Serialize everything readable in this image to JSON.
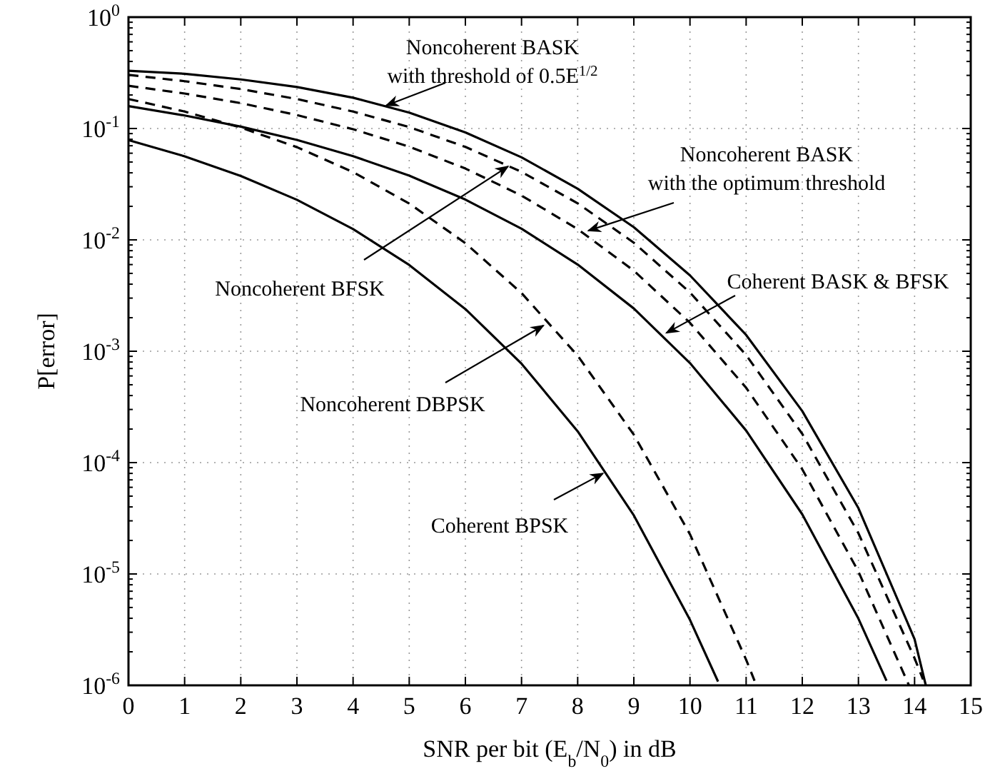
{
  "chart_data": {
    "type": "line",
    "xlabel": "SNR per bit (E$_{b}$/N$_{0}$) in dB",
    "ylabel": "P[error]",
    "log": "y",
    "grid": true,
    "marker": "none",
    "xlim": [
      0,
      15
    ],
    "xticks": [
      0,
      1,
      2,
      3,
      4,
      5,
      6,
      7,
      8,
      9,
      10,
      11,
      12,
      13,
      14,
      15
    ],
    "ylim": [
      1e-06,
      1
    ],
    "yticks": [
      {
        "value": 1e-06,
        "label": "10$^{-6}$"
      },
      {
        "value": 2e-06,
        "label": null
      },
      {
        "value": 3e-06,
        "label": null
      },
      {
        "value": 4e-06,
        "label": null
      },
      {
        "value": 5e-06,
        "label": null
      },
      {
        "value": 6e-06,
        "label": null
      },
      {
        "value": 7e-06,
        "label": null
      },
      {
        "value": 8e-06,
        "label": null
      },
      {
        "value": 9e-06,
        "label": null
      },
      {
        "value": 1e-05,
        "label": "10$^{-5}$"
      },
      {
        "value": 2e-05,
        "label": null
      },
      {
        "value": 3e-05,
        "label": null
      },
      {
        "value": 4e-05,
        "label": null
      },
      {
        "value": 5e-05,
        "label": null
      },
      {
        "value": 6e-05,
        "label": null
      },
      {
        "value": 7e-05,
        "label": null
      },
      {
        "value": 8e-05,
        "label": null
      },
      {
        "value": 9e-05,
        "label": null
      },
      {
        "value": 0.0001,
        "label": "10$^{-4}$"
      },
      {
        "value": 0.0002,
        "label": null
      },
      {
        "value": 0.0003,
        "label": null
      },
      {
        "value": 0.0004,
        "label": null
      },
      {
        "value": 0.0005,
        "label": null
      },
      {
        "value": 0.0006,
        "label": null
      },
      {
        "value": 0.0007,
        "label": null
      },
      {
        "value": 0.0008,
        "label": null
      },
      {
        "value": 0.0009,
        "label": null
      },
      {
        "value": 0.001,
        "label": "10$^{-3}$"
      },
      {
        "value": 0.002,
        "label": null
      },
      {
        "value": 0.003,
        "label": null
      },
      {
        "value": 0.004,
        "label": null
      },
      {
        "value": 0.005,
        "label": null
      },
      {
        "value": 0.006,
        "label": null
      },
      {
        "value": 0.007,
        "label": null
      },
      {
        "value": 0.008,
        "label": null
      },
      {
        "value": 0.009,
        "label": null
      },
      {
        "value": 0.01,
        "label": "10$^{-2}$"
      },
      {
        "value": 0.02,
        "label": null
      },
      {
        "value": 0.03,
        "label": null
      },
      {
        "value": 0.04,
        "label": null
      },
      {
        "value": 0.05,
        "label": null
      },
      {
        "value": 0.06,
        "label": null
      },
      {
        "value": 0.07,
        "label": null
      },
      {
        "value": 0.08,
        "label": null
      },
      {
        "value": 0.09,
        "label": null
      },
      {
        "value": 0.1,
        "label": "10$^{-1}$"
      },
      {
        "value": 0.2,
        "label": null
      },
      {
        "value": 0.3,
        "label": null
      },
      {
        "value": 0.4,
        "label": null
      },
      {
        "value": 0.5,
        "label": null
      },
      {
        "value": 0.6,
        "label": null
      },
      {
        "value": 0.7,
        "label": null
      },
      {
        "value": 0.8,
        "label": null
      },
      {
        "value": 0.9,
        "label": null
      },
      {
        "value": 1,
        "label": "10$^{0}$"
      }
    ],
    "series": [
      {
        "color": "#000000",
        "line_style": "solid",
        "x": [
          0,
          1,
          2,
          3,
          4,
          5,
          6,
          7,
          8,
          9,
          10,
          11,
          12,
          13,
          14,
          14.2
        ],
        "values": [
          0.33,
          0.31,
          0.276,
          0.236,
          0.189,
          0.139,
          0.0922,
          0.0551,
          0.0288,
          0.013,
          0.0048,
          0.0014,
          0.00029,
          3.9e-05,
          2.6e-06,
          1e-06
        ]
      },
      {
        "color": "#000000",
        "line_style": "dashed",
        "x": [
          0,
          1,
          2,
          3,
          4,
          5,
          6,
          7,
          8,
          9,
          10,
          11,
          12,
          13,
          14,
          14.15
        ],
        "values": [
          0.303,
          0.266,
          0.226,
          0.184,
          0.142,
          0.103,
          0.0683,
          0.0408,
          0.0213,
          0.00943,
          0.00337,
          0.000924,
          0.000181,
          2.32e-05,
          1.75e-06,
          1.13e-06
        ]
      },
      {
        "color": "#000000",
        "line_style": "dashed",
        "x": [
          0,
          1,
          2,
          3,
          4,
          5,
          6,
          7,
          8,
          9,
          10,
          11,
          12,
          13,
          13.9
        ],
        "values": [
          0.242,
          0.206,
          0.169,
          0.132,
          0.0985,
          0.0687,
          0.0437,
          0.025,
          0.0125,
          0.00529,
          0.0018,
          0.00047,
          8.7e-05,
          1.05e-05,
          1e-06
        ]
      },
      {
        "color": "#000000",
        "line_style": "solid",
        "x": [
          0,
          1,
          2,
          3,
          4,
          5,
          6,
          7,
          8,
          9,
          10,
          11,
          12,
          13,
          13.5
        ],
        "values": [
          0.159,
          0.131,
          0.104,
          0.0789,
          0.0565,
          0.0377,
          0.023,
          0.0126,
          0.006,
          0.00242,
          0.000783,
          0.000194,
          3.43e-05,
          3.97e-06,
          1.1e-06
        ]
      },
      {
        "color": "#000000",
        "line_style": "dashed",
        "x": [
          0,
          1,
          2,
          3,
          4,
          5,
          6,
          7,
          8,
          9,
          10,
          11,
          11.15
        ],
        "values": [
          0.184,
          0.142,
          0.102,
          0.068,
          0.0406,
          0.0212,
          0.00934,
          0.00333,
          0.000912,
          0.000178,
          2.27e-05,
          1.7e-06,
          1.1e-06
        ]
      },
      {
        "color": "#000000",
        "line_style": "solid",
        "x": [
          0,
          1,
          2,
          3,
          4,
          5,
          6,
          7,
          8,
          9,
          10,
          10.5
        ],
        "values": [
          0.0786,
          0.0563,
          0.0375,
          0.0229,
          0.0125,
          0.00595,
          0.00239,
          0.000773,
          0.000191,
          3.36e-05,
          3.87e-06,
          1.08e-06
        ]
      }
    ],
    "annotations": [
      {
        "text": "Noncoherent BASK\nwith threshold of 0.5E$^{1/2}$",
        "x": 4.59,
        "y": 0.161
      },
      {
        "text": "Noncoherent BASK\nwith the optimum threshold",
        "x": 8.19,
        "y": 0.0121
      },
      {
        "text": "Noncoherent BFSK",
        "x": 6.76,
        "y": 0.0457
      },
      {
        "text": "Coherent BASK & BFSK",
        "x": 9.58,
        "y": 0.00146
      },
      {
        "text": "Noncoherent DBPSK",
        "x": 7.39,
        "y": 0.0017
      },
      {
        "text": "Coherent BPSK",
        "x": 8.45,
        "y": 8e-05
      }
    ]
  }
}
